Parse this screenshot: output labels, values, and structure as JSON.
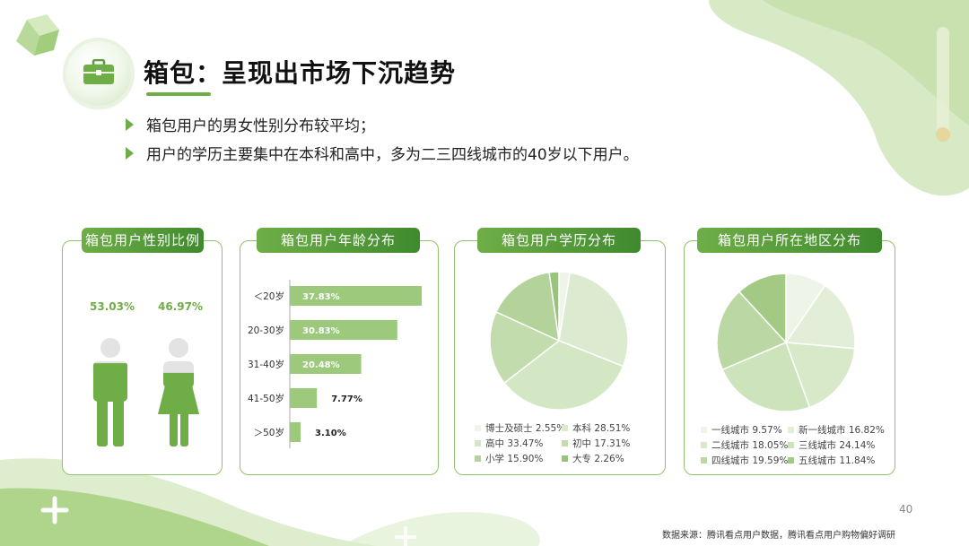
{
  "title": "箱包：呈现出市场下沉趋势",
  "bullets": [
    "箱包用户的男女性别分布较平均；",
    "用户的学历主要集中在本科和高中，多为二三四线城市的40岁以下用户。"
  ],
  "colors": {
    "accent": "#6fae47",
    "dark_accent": "#3f8a2e"
  },
  "icons": {
    "title": "briefcase-icon",
    "male": "male-person-icon",
    "female": "female-person-icon"
  },
  "page_number": "40",
  "source": "数据来源：腾讯看点用户数据，腾讯看点用户购物偏好调研",
  "cards": {
    "gender": {
      "header": "箱包用户性别比例",
      "male_label": "53.03%",
      "female_label": "46.97%"
    },
    "age": {
      "header": "箱包用户年龄分布"
    },
    "education": {
      "header": "箱包用户学历分布"
    },
    "region": {
      "header": "箱包用户所在地区分布"
    }
  },
  "chart_data": [
    {
      "type": "bar",
      "title": "箱包用户性别比例",
      "categories": [
        "男",
        "女"
      ],
      "values": [
        53.03,
        46.97
      ],
      "value_labels": [
        "53.03%",
        "46.97%"
      ]
    },
    {
      "type": "bar",
      "orientation": "horizontal",
      "title": "箱包用户年龄分布",
      "categories": [
        "＜20岁",
        "20-30岁",
        "31-40岁",
        "41-50岁",
        "＞50岁"
      ],
      "values": [
        37.83,
        30.83,
        20.48,
        7.77,
        3.1
      ],
      "value_labels": [
        "37.83%",
        "30.83%",
        "20.48%",
        "7.77%",
        "3.10%"
      ]
    },
    {
      "type": "pie",
      "title": "箱包用户学历分布",
      "labels": [
        "博士及硕士",
        "本科",
        "高中",
        "初中",
        "小学",
        "大专"
      ],
      "values": [
        2.55,
        28.51,
        33.47,
        17.31,
        15.9,
        2.26
      ],
      "legend_text": [
        "博士及硕士 2.55%",
        "本科 28.51%",
        "高中 33.47%",
        "初中 17.31%",
        "小学 15.90%",
        "大专 2.26%"
      ],
      "colors": [
        "#eef5e8",
        "#dcebd0",
        "#d3e7c5",
        "#c2dcad",
        "#b3d39a",
        "#97c37a"
      ]
    },
    {
      "type": "pie",
      "title": "箱包用户所在地区分布",
      "labels": [
        "一线城市",
        "新一线城市",
        "二线城市",
        "三线城市",
        "四线城市",
        "五线城市"
      ],
      "values": [
        9.57,
        16.82,
        18.05,
        24.14,
        19.59,
        11.84
      ],
      "legend_text": [
        "一线城市 9.57%",
        "新一线城市 16.82%",
        "二线城市 18.05%",
        "三线城市 24.14%",
        "四线城市 19.59%",
        "五线城市 11.84%"
      ],
      "colors": [
        "#eef5e8",
        "#e2eed7",
        "#d8e9ca",
        "#cde3bc",
        "#bbd8a4",
        "#a3ca85"
      ]
    }
  ]
}
